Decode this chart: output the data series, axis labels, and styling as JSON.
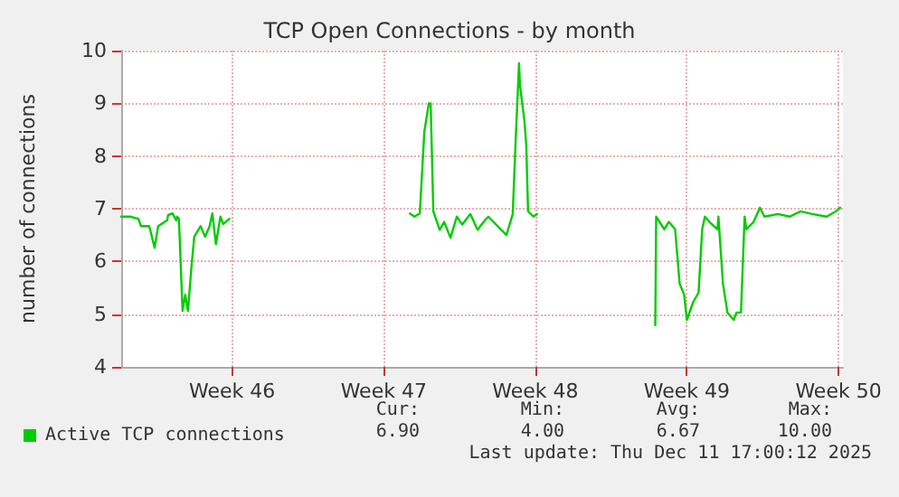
{
  "chart_data": {
    "type": "line",
    "title": "TCP Open Connections - by month",
    "ylabel": "number of connections",
    "xlim": [
      "2025-11-08T09:00",
      "2025-12-11T17:00"
    ],
    "xticks": [
      {
        "value": "2025-11-13T12:00",
        "label": "Week 46"
      },
      {
        "value": "2025-11-20T12:00",
        "label": "Week 47"
      },
      {
        "value": "2025-11-27T12:00",
        "label": "Week 48"
      },
      {
        "value": "2025-12-04T12:00",
        "label": "Week 49"
      },
      {
        "value": "2025-12-11T12:00",
        "label": "Week 50"
      }
    ],
    "ylim": [
      4,
      10
    ],
    "yticks": [
      4,
      5,
      6,
      7,
      8,
      9,
      10
    ],
    "grid": true,
    "legend": "bottom left",
    "marker": "none",
    "line_style": "solid",
    "series": [
      {
        "name": "Active TCP connections",
        "color": "#00cc00",
        "x": [
          "2025-11-08T09:00",
          "2025-11-08T19:00",
          "2025-11-09T04:00",
          "2025-11-09T07:00",
          "2025-11-09T16:00",
          "2025-11-09T17:00",
          "2025-11-09T22:00",
          "2025-11-10T02:00",
          "2025-11-10T12:00",
          "2025-11-10T13:00",
          "2025-11-10T18:00",
          "2025-11-10T22:00",
          "2025-11-10T23:00",
          "2025-11-11T01:00",
          "2025-11-11T05:00",
          "2025-11-11T08:00",
          "2025-11-11T11:00",
          "2025-11-11T15:00",
          "2025-11-11T18:00",
          "2025-11-12T01:00",
          "2025-11-12T06:00",
          "2025-11-12T11:00",
          "2025-11-12T14:00",
          "2025-11-12T18:00",
          "2025-11-12T23:00",
          "2025-11-13T02:00",
          "2025-11-13T09:00",
          "2025-11-17T00:00",
          "2025-11-21T17:00",
          "2025-11-21T22:00",
          "2025-11-22T04:00",
          "2025-11-22T09:00",
          "2025-11-22T14:00",
          "2025-11-22T16:00",
          "2025-11-22T19:00",
          "2025-11-23T02:00",
          "2025-11-23T07:00",
          "2025-11-23T14:00",
          "2025-11-23T21:00",
          "2025-11-24T03:00",
          "2025-11-24T12:00",
          "2025-11-24T20:00",
          "2025-11-25T05:00",
          "2025-11-25T08:00",
          "2025-11-26T04:00",
          "2025-11-26T11:00",
          "2025-11-26T14:00",
          "2025-11-26T18:00",
          "2025-11-26T19:00",
          "2025-11-27T00:00",
          "2025-11-27T02:00",
          "2025-11-27T04:00",
          "2025-11-27T10:00",
          "2025-11-27T14:00",
          "2025-12-01T00:00",
          "2025-12-03T01:00",
          "2025-12-03T02:00",
          "2025-12-03T11:00",
          "2025-12-03T16:00",
          "2025-12-03T23:00",
          "2025-12-04T04:00",
          "2025-12-04T09:00",
          "2025-12-04T12:00",
          "2025-12-04T19:00",
          "2025-12-05T01:00",
          "2025-12-05T05:00",
          "2025-12-05T08:00",
          "2025-12-05T13:00",
          "2025-12-05T22:00",
          "2025-12-05T23:00",
          "2025-12-06T04:00",
          "2025-12-06T09:00",
          "2025-12-06T16:00",
          "2025-12-06T19:00",
          "2025-12-07T00:00",
          "2025-12-07T04:00",
          "2025-12-07T06:00",
          "2025-12-07T14:00",
          "2025-12-07T21:00",
          "2025-12-08T02:00",
          "2025-12-08T17:00",
          "2025-12-09T06:00",
          "2025-12-09T18:00",
          "2025-12-10T07:00",
          "2025-12-10T23:00",
          "2025-12-11T09:00",
          "2025-12-11T14:00"
        ],
        "values": [
          6.85,
          6.85,
          6.81,
          6.67,
          6.67,
          6.61,
          6.26,
          6.67,
          6.78,
          6.88,
          6.91,
          6.78,
          6.85,
          6.81,
          5.06,
          5.37,
          5.06,
          5.92,
          6.47,
          6.67,
          6.47,
          6.67,
          6.91,
          6.33,
          6.85,
          6.71,
          6.81,
          null,
          6.91,
          6.85,
          6.91,
          8.46,
          9.0,
          9.0,
          6.95,
          6.6,
          6.75,
          6.45,
          6.85,
          6.7,
          6.9,
          6.6,
          6.8,
          6.85,
          6.5,
          6.9,
          8.2,
          9.76,
          9.35,
          8.66,
          8.2,
          6.95,
          6.85,
          6.9,
          null,
          4.79,
          6.85,
          6.61,
          6.75,
          6.61,
          5.58,
          5.37,
          4.89,
          5.23,
          5.41,
          6.61,
          6.85,
          6.75,
          6.61,
          6.85,
          5.58,
          5.03,
          4.89,
          5.03,
          5.03,
          6.85,
          6.61,
          6.75,
          7.02,
          6.85,
          6.9,
          6.85,
          6.95,
          6.9,
          6.85,
          6.95,
          7.02
        ]
      }
    ],
    "annotations": [
      "Cur:",
      "Min:",
      "Avg:",
      "Max:",
      "6.90",
      "4.00",
      "6.67",
      "10.00",
      "Last update: Thu Dec 11 17:00:12 2025"
    ]
  }
}
